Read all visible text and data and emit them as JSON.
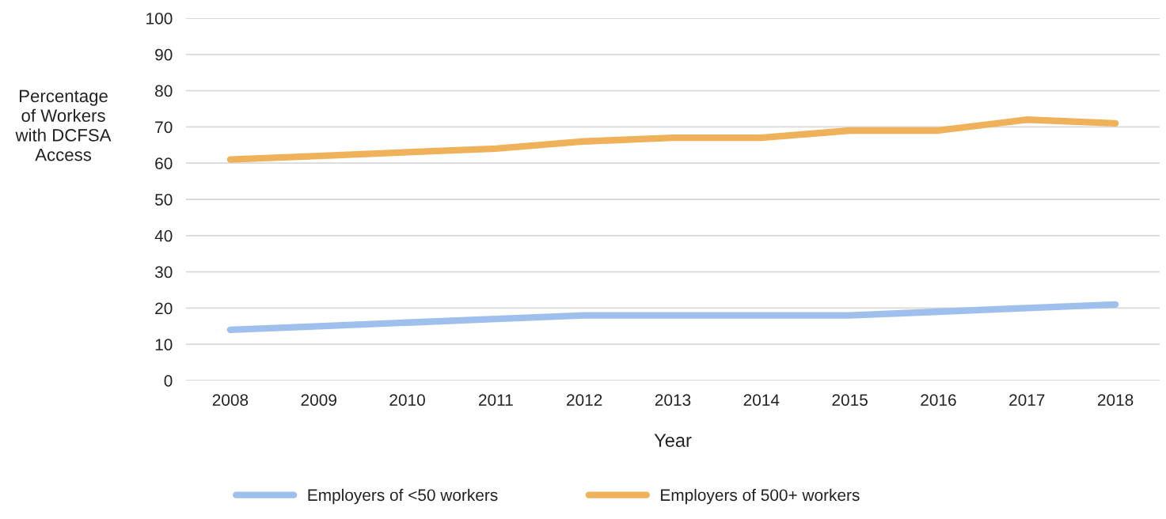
{
  "chart_data": {
    "type": "line",
    "xlabel": "Year",
    "ylabel": "Percentage\nof Workers\nwith DCFSA\nAccess",
    "categories": [
      "2008",
      "2009",
      "2010",
      "2011",
      "2012",
      "2013",
      "2014",
      "2015",
      "2016",
      "2017",
      "2018"
    ],
    "series": [
      {
        "name": "Employers of <50 workers",
        "color": "#9fbfed",
        "values": [
          14,
          15,
          16,
          17,
          18,
          18,
          18,
          18,
          19,
          20,
          21
        ]
      },
      {
        "name": "Employers of 500+ workers",
        "color": "#efb25b",
        "values": [
          61,
          62,
          63,
          64,
          66,
          67,
          67,
          69,
          69,
          72,
          71
        ]
      }
    ],
    "ylim": [
      0,
      100
    ],
    "yticks": [
      0,
      10,
      20,
      30,
      40,
      50,
      60,
      70,
      80,
      90,
      100
    ],
    "grid": "y",
    "legend": "bottom",
    "marker": "none",
    "line_style": "solid"
  }
}
